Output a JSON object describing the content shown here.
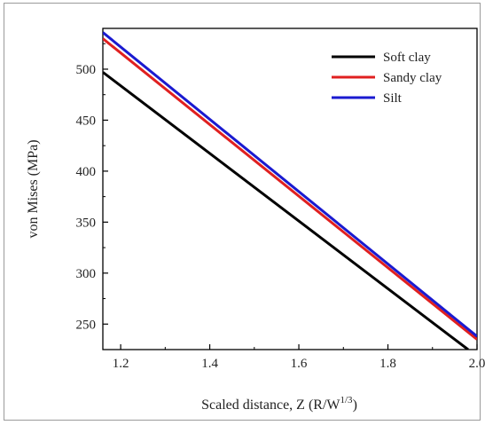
{
  "chart_data": {
    "type": "line",
    "title": "",
    "xlabel": "Scaled distance, Z (R/W",
    "xlabel_sup": "1/3",
    "xlabel_end": ")",
    "ylabel": "von Mises (MPa)",
    "xlim": [
      1.16,
      2.0
    ],
    "ylim": [
      225,
      540
    ],
    "xticks": [
      1.2,
      1.4,
      1.6,
      1.8,
      2.0
    ],
    "xtick_labels": [
      "1.2",
      "1.4",
      "1.6",
      "1.8",
      "2.0"
    ],
    "yticks": [
      250,
      300,
      350,
      400,
      450,
      500
    ],
    "ytick_labels": [
      "250",
      "300",
      "350",
      "400",
      "450",
      "500"
    ],
    "grid": false,
    "legend_position": "top-right",
    "series": [
      {
        "name": "Soft clay",
        "color": "#000000",
        "x": [
          1.16,
          1.98
        ],
        "y": [
          497,
          225
        ]
      },
      {
        "name": "Sandy clay",
        "color": "#e02020",
        "x": [
          1.16,
          2.0
        ],
        "y": [
          530,
          235
        ]
      },
      {
        "name": "Silt",
        "color": "#1a1ad0",
        "x": [
          1.16,
          2.0
        ],
        "y": [
          536,
          238
        ]
      }
    ]
  }
}
